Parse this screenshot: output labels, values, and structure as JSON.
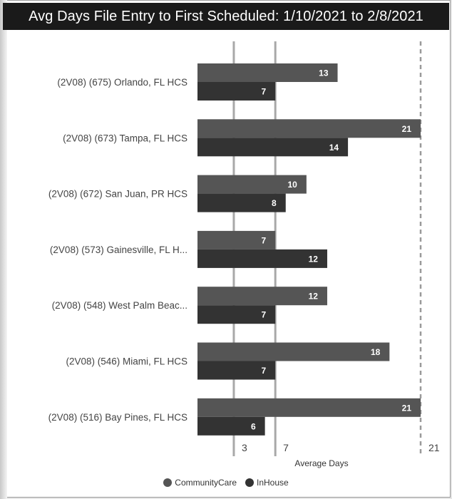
{
  "chart_data": {
    "type": "bar",
    "orientation": "horizontal",
    "title": "Avg Days File Entry to First Scheduled: 1/10/2021 to 2/8/2021",
    "xlabel": "Average Days",
    "ylabel": "",
    "categories": [
      "(2V08) (675) Orlando, FL HCS",
      "(2V08) (673) Tampa, FL HCS",
      "(2V08) (672) San Juan, PR HCS",
      "(2V08) (573) Gainesville, FL H...",
      "(2V08) (548) West Palm Beac...",
      "(2V08) (546) Miami, FL HCS",
      "(2V08) (516) Bay Pines, FL HCS"
    ],
    "series": [
      {
        "name": "CommunityCare",
        "color": "#555555",
        "values": [
          13,
          21,
          10,
          7,
          12,
          18,
          21
        ]
      },
      {
        "name": "InHouse",
        "color": "#333333",
        "values": [
          7,
          14,
          8,
          12,
          7,
          7,
          6
        ]
      }
    ],
    "xlim": [
      -0.5,
      21
    ],
    "reference_lines": [
      {
        "value": 3,
        "label": "3",
        "style": "solid"
      },
      {
        "value": 7,
        "label": "7",
        "style": "solid"
      },
      {
        "value": 21,
        "label": "21",
        "style": "dashed"
      }
    ],
    "legend_position": "bottom-center",
    "grid": false
  }
}
